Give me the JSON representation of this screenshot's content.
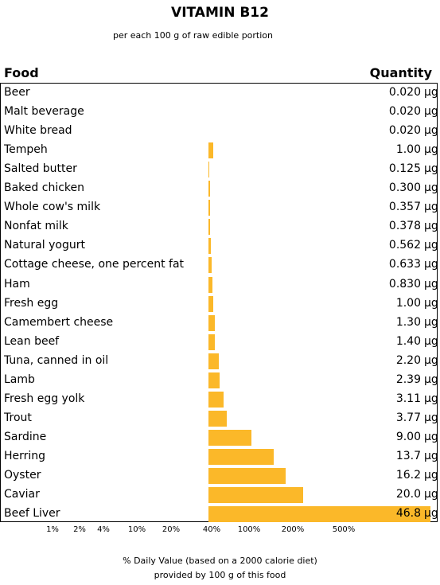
{
  "chart_data": {
    "type": "bar",
    "title": "VITAMIN B12",
    "subtitle": "per each 100 g of raw edible portion",
    "column_headers": {
      "food": "Food",
      "quantity": "Quantity"
    },
    "unit": "µg",
    "daily_value_ug": 2.4,
    "x_scale": "log",
    "x_tick_labels": [
      "1%",
      "2%",
      "4%",
      "10%",
      "20%",
      "40%",
      "100%",
      "200%",
      "500%"
    ],
    "xlabel_line1": "% Daily Value (based on a 2000 calorie diet)",
    "xlabel_line2": "provided by 100 g of this food",
    "bar_color": "#FBB829",
    "rows": [
      {
        "food": "Beer",
        "quantity": "0.020",
        "value": 0.02
      },
      {
        "food": "Malt beverage",
        "quantity": "0.020",
        "value": 0.02
      },
      {
        "food": "White bread",
        "quantity": "0.020",
        "value": 0.02
      },
      {
        "food": "Tempeh",
        "quantity": "1.00",
        "value": 1.0
      },
      {
        "food": "Salted butter",
        "quantity": "0.125",
        "value": 0.125
      },
      {
        "food": "Baked chicken",
        "quantity": "0.300",
        "value": 0.3
      },
      {
        "food": "Whole cow's milk",
        "quantity": "0.357",
        "value": 0.357
      },
      {
        "food": "Nonfat milk",
        "quantity": "0.378",
        "value": 0.378
      },
      {
        "food": "Natural yogurt",
        "quantity": "0.562",
        "value": 0.562
      },
      {
        "food": "Cottage cheese, one percent fat",
        "quantity": "0.633",
        "value": 0.633
      },
      {
        "food": "Ham",
        "quantity": "0.830",
        "value": 0.83
      },
      {
        "food": "Fresh egg",
        "quantity": "1.00",
        "value": 1.0
      },
      {
        "food": "Camembert cheese",
        "quantity": "1.30",
        "value": 1.3
      },
      {
        "food": "Lean beef",
        "quantity": "1.40",
        "value": 1.4
      },
      {
        "food": "Tuna, canned in oil",
        "quantity": "2.20",
        "value": 2.2
      },
      {
        "food": "Lamb",
        "quantity": "2.39",
        "value": 2.39
      },
      {
        "food": "Fresh egg yolk",
        "quantity": "3.11",
        "value": 3.11
      },
      {
        "food": "Trout",
        "quantity": "3.77",
        "value": 3.77
      },
      {
        "food": "Sardine",
        "quantity": "9.00",
        "value": 9.0
      },
      {
        "food": "Herring",
        "quantity": "13.7",
        "value": 13.7
      },
      {
        "food": "Oyster",
        "quantity": "16.2",
        "value": 16.2
      },
      {
        "food": "Caviar",
        "quantity": "20.0",
        "value": 20.0
      },
      {
        "food": "Beef Liver",
        "quantity": "46.8",
        "value": 46.8
      }
    ]
  }
}
